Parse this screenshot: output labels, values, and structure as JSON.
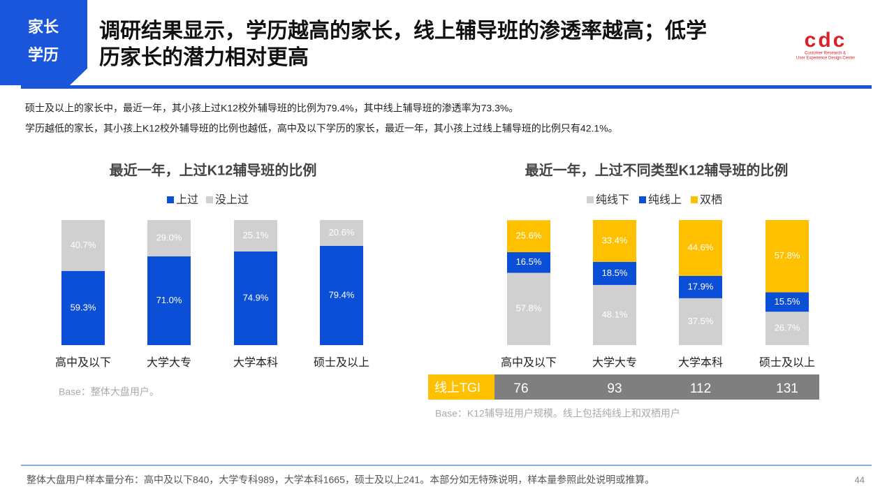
{
  "header": {
    "tag_lines": [
      "家长",
      "学历"
    ],
    "title_lines": [
      "调研结果显示，学历越高的家长，线上辅导班的渗透率越高；低学",
      "历家长的潜力相对更高"
    ],
    "logo": "cdc",
    "logo_sub_lines": [
      "Customer Research &",
      "User Experience Design Center"
    ]
  },
  "intro": [
    "硕士及以上的家长中，最近一年，其小孩上过K12校外辅导班的比例为79.4%，其中线上辅导班的渗透率为73.3%。",
    "学历越低的家长，其小孩上K12校外辅导班的比例也越低，高中及以下学历的家长，最近一年，其小孩上过线上辅导班的比例只有42.1%。"
  ],
  "chart_data": [
    {
      "type": "stacked-bar",
      "title": "最近一年，上过K12辅导班的比例",
      "categories": [
        "高中及以下",
        "大学大专",
        "大学本科",
        "硕士及以上"
      ],
      "series": [
        {
          "name": "上过",
          "color": "#0b4fd6",
          "values": [
            59.3,
            71.0,
            74.9,
            79.4
          ],
          "value_labels": [
            "59.3%",
            "71.0%",
            "74.9%",
            "79.4%"
          ]
        },
        {
          "name": "没上过",
          "color": "#d0d0d0",
          "values": [
            40.7,
            29.0,
            25.1,
            20.6
          ],
          "value_labels": [
            "40.7%",
            "29.0%",
            "25.1%",
            "20.6%"
          ]
        }
      ],
      "ylim": [
        0,
        100
      ],
      "note": "Base：整体大盘用户。"
    },
    {
      "type": "stacked-bar",
      "title": "最近一年，上过不同类型K12辅导班的比例",
      "categories": [
        "高中及以下",
        "大学大专",
        "大学本科",
        "硕士及以上"
      ],
      "series": [
        {
          "name": "纯线下",
          "color": "#d0d0d0",
          "values": [
            57.8,
            48.1,
            37.5,
            26.7
          ],
          "value_labels": [
            "57.8%",
            "48.1%",
            "37.5%",
            "26.7%"
          ]
        },
        {
          "name": "纯线上",
          "color": "#0b4fd6",
          "values": [
            16.5,
            18.5,
            17.9,
            15.5
          ],
          "value_labels": [
            "16.5%",
            "18.5%",
            "17.9%",
            "15.5%"
          ]
        },
        {
          "name": "双栖",
          "color": "#ffc000",
          "values": [
            25.6,
            33.4,
            44.6,
            57.8
          ],
          "value_labels": [
            "25.6%",
            "33.4%",
            "44.6%",
            "57.8%"
          ]
        }
      ],
      "ylim": [
        0,
        100
      ],
      "tgi": {
        "label": "线上TGI",
        "values": [
          76,
          93,
          112,
          131
        ]
      },
      "note": "Base：K12辅导班用户规模。线上包括纯线上和双栖用户"
    }
  ],
  "footer": {
    "text": "整体大盘用户样本量分布：高中及以下840，大学专科989，大学本科1665，硕士及以上241。本部分如无特殊说明，样本量参照此处说明或推算。",
    "page": 44
  }
}
